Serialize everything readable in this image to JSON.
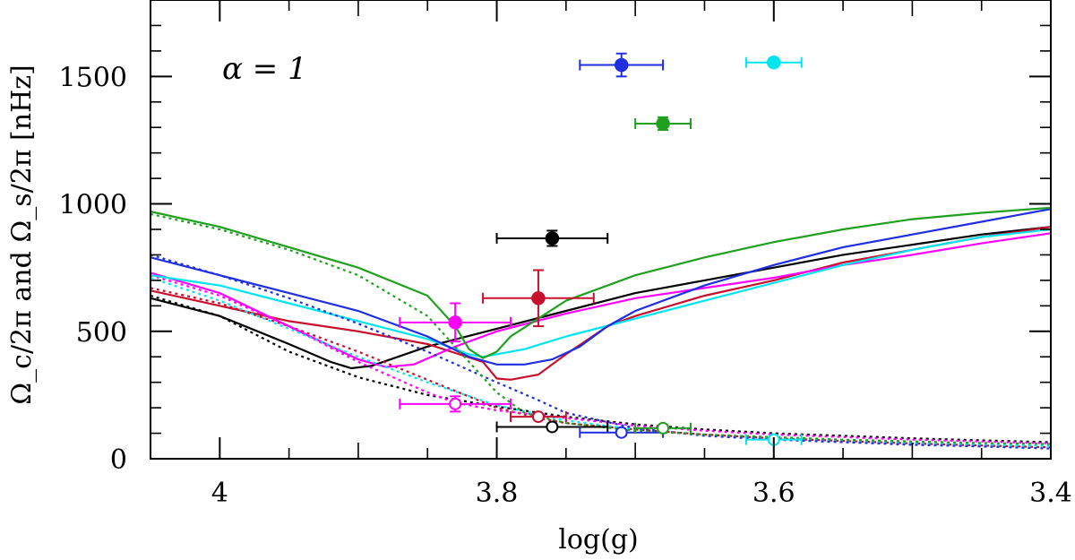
{
  "chart_data": {
    "type": "line",
    "title": "",
    "xlabel": "log(g)",
    "ylabel": "Ω_c/2π and Ω_s/2π [nHz]",
    "xlim": [
      4.05,
      3.4
    ],
    "ylim": [
      0,
      1800
    ],
    "x_ticks": [
      {
        "value": 4.0,
        "label": "4"
      },
      {
        "value": 3.8,
        "label": "3.8"
      },
      {
        "value": 3.6,
        "label": "3.6"
      },
      {
        "value": 3.4,
        "label": "3.4"
      }
    ],
    "y_ticks": [
      {
        "value": 0,
        "label": "0"
      },
      {
        "value": 500,
        "label": "500"
      },
      {
        "value": 1000,
        "label": "1000"
      },
      {
        "value": 1500,
        "label": "1500"
      }
    ],
    "annotation": "α = 1",
    "series": [
      {
        "name": "black-core",
        "color": "#000000",
        "style": "solid",
        "x": [
          4.05,
          4.0,
          3.95,
          3.92,
          3.905,
          3.89,
          3.85,
          3.8,
          3.75,
          3.7,
          3.65,
          3.6,
          3.55,
          3.5,
          3.45,
          3.4
        ],
        "y": [
          630,
          560,
          450,
          380,
          355,
          365,
          440,
          510,
          580,
          650,
          700,
          750,
          800,
          840,
          880,
          910
        ]
      },
      {
        "name": "black-surface",
        "color": "#000000",
        "style": "dotted",
        "x": [
          4.05,
          4.0,
          3.95,
          3.9,
          3.85,
          3.8,
          3.75,
          3.7,
          3.65,
          3.6,
          3.55,
          3.5,
          3.45,
          3.4
        ],
        "y": [
          640,
          560,
          420,
          320,
          250,
          205,
          165,
          135,
          115,
          100,
          90,
          80,
          72,
          65
        ]
      },
      {
        "name": "red-core",
        "color": "#c8102e",
        "style": "solid",
        "x": [
          4.05,
          4.0,
          3.95,
          3.9,
          3.85,
          3.81,
          3.8,
          3.79,
          3.77,
          3.75,
          3.72,
          3.7,
          3.65,
          3.6,
          3.55,
          3.5,
          3.45,
          3.4
        ],
        "y": [
          660,
          600,
          540,
          500,
          450,
          380,
          315,
          310,
          330,
          410,
          520,
          560,
          640,
          700,
          770,
          820,
          870,
          910
        ]
      },
      {
        "name": "red-surface",
        "color": "#c8102e",
        "style": "dotted",
        "x": [
          4.05,
          4.0,
          3.95,
          3.9,
          3.85,
          3.8,
          3.77,
          3.75,
          3.7,
          3.65,
          3.6,
          3.55,
          3.5,
          3.45,
          3.4
        ],
        "y": [
          670,
          610,
          520,
          420,
          310,
          200,
          160,
          140,
          115,
          95,
          80,
          70,
          60,
          52,
          45
        ]
      },
      {
        "name": "magenta-core",
        "color": "#ff00ff",
        "style": "solid",
        "x": [
          4.05,
          4.0,
          3.95,
          3.9,
          3.88,
          3.86,
          3.83,
          3.8,
          3.75,
          3.7,
          3.65,
          3.6,
          3.55,
          3.5,
          3.45,
          3.4
        ],
        "y": [
          730,
          650,
          520,
          390,
          360,
          370,
          440,
          500,
          570,
          630,
          670,
          710,
          760,
          800,
          845,
          885
        ]
      },
      {
        "name": "magenta-surface",
        "color": "#ff00ff",
        "style": "dotted",
        "x": [
          4.05,
          4.0,
          3.95,
          3.9,
          3.85,
          3.83,
          3.8,
          3.75,
          3.7,
          3.65,
          3.6,
          3.55,
          3.5,
          3.45,
          3.4
        ],
        "y": [
          720,
          640,
          520,
          380,
          260,
          220,
          190,
          160,
          130,
          110,
          95,
          85,
          75,
          68,
          60
        ]
      },
      {
        "name": "cyan-core",
        "color": "#00e5ee",
        "style": "solid",
        "x": [
          4.05,
          4.0,
          3.95,
          3.9,
          3.85,
          3.82,
          3.81,
          3.78,
          3.75,
          3.7,
          3.65,
          3.6,
          3.55,
          3.5,
          3.45,
          3.4
        ],
        "y": [
          720,
          680,
          610,
          540,
          470,
          410,
          400,
          430,
          480,
          550,
          620,
          690,
          760,
          820,
          870,
          900
        ]
      },
      {
        "name": "cyan-surface",
        "color": "#00e5ee",
        "style": "dotted",
        "x": [
          4.05,
          4.0,
          3.95,
          3.9,
          3.85,
          3.8,
          3.75,
          3.7,
          3.65,
          3.6,
          3.55,
          3.5,
          3.45,
          3.4
        ],
        "y": [
          710,
          620,
          510,
          400,
          300,
          210,
          150,
          115,
          95,
          80,
          70,
          62,
          55,
          50
        ]
      },
      {
        "name": "blue-core",
        "color": "#1f2fe0",
        "style": "solid",
        "x": [
          4.05,
          4.0,
          3.95,
          3.9,
          3.85,
          3.82,
          3.8,
          3.78,
          3.76,
          3.74,
          3.72,
          3.7,
          3.65,
          3.6,
          3.55,
          3.5,
          3.45,
          3.4
        ],
        "y": [
          790,
          720,
          650,
          580,
          480,
          400,
          370,
          370,
          390,
          440,
          520,
          580,
          680,
          760,
          830,
          880,
          930,
          980
        ]
      },
      {
        "name": "blue-surface",
        "color": "#1f2fe0",
        "style": "dotted",
        "x": [
          4.05,
          4.0,
          3.95,
          3.9,
          3.85,
          3.8,
          3.77,
          3.75,
          3.7,
          3.65,
          3.6,
          3.55,
          3.5,
          3.45,
          3.4
        ],
        "y": [
          800,
          720,
          630,
          530,
          420,
          300,
          230,
          180,
          120,
          90,
          75,
          65,
          55,
          48,
          40
        ]
      },
      {
        "name": "green-core",
        "color": "#1fa01f",
        "style": "solid",
        "x": [
          4.05,
          4.0,
          3.95,
          3.9,
          3.85,
          3.83,
          3.82,
          3.81,
          3.8,
          3.79,
          3.77,
          3.75,
          3.7,
          3.65,
          3.6,
          3.55,
          3.5,
          3.45,
          3.4
        ],
        "y": [
          970,
          910,
          830,
          750,
          640,
          520,
          430,
          395,
          420,
          480,
          550,
          620,
          720,
          790,
          850,
          900,
          940,
          965,
          985
        ]
      },
      {
        "name": "green-surface",
        "color": "#1fa01f",
        "style": "dotted",
        "x": [
          4.05,
          4.0,
          3.95,
          3.9,
          3.85,
          3.82,
          3.8,
          3.78,
          3.75,
          3.7,
          3.65,
          3.6,
          3.55,
          3.5,
          3.45,
          3.4
        ],
        "y": [
          960,
          900,
          820,
          720,
          560,
          380,
          260,
          180,
          140,
          110,
          95,
          85,
          75,
          68,
          62,
          58
        ]
      }
    ],
    "error_points": [
      {
        "name": "black-filled",
        "color": "#000000",
        "filled": true,
        "x": 3.76,
        "y": 865,
        "xerr": 0.04,
        "yerr": 30
      },
      {
        "name": "red-filled",
        "color": "#c8102e",
        "filled": true,
        "x": 3.77,
        "y": 630,
        "xerr": 0.04,
        "yerr": 110
      },
      {
        "name": "magenta-filled",
        "color": "#ff00ff",
        "filled": true,
        "x": 3.83,
        "y": 535,
        "xerr": 0.04,
        "yerr": 75
      },
      {
        "name": "blue-filled",
        "color": "#1f2fe0",
        "filled": true,
        "x": 3.71,
        "y": 1545,
        "xerr": 0.03,
        "yerr": 45
      },
      {
        "name": "green-filled",
        "color": "#1fa01f",
        "filled": true,
        "x": 3.68,
        "y": 1315,
        "xerr": 0.02,
        "yerr": 25
      },
      {
        "name": "cyan-filled",
        "color": "#00e5ee",
        "filled": true,
        "x": 3.6,
        "y": 1555,
        "xerr": 0.02,
        "yerr": 15
      },
      {
        "name": "black-open",
        "color": "#000000",
        "filled": false,
        "x": 3.76,
        "y": 125,
        "xerr": 0.04,
        "yerr": 10
      },
      {
        "name": "red-open",
        "color": "#c8102e",
        "filled": false,
        "x": 3.77,
        "y": 165,
        "xerr": 0.02,
        "yerr": 10
      },
      {
        "name": "magenta-open",
        "color": "#ff00ff",
        "filled": false,
        "x": 3.83,
        "y": 215,
        "xerr": 0.04,
        "yerr": 30
      },
      {
        "name": "blue-open",
        "color": "#1f2fe0",
        "filled": false,
        "x": 3.71,
        "y": 103,
        "xerr": 0.03,
        "yerr": 10
      },
      {
        "name": "green-open",
        "color": "#1fa01f",
        "filled": false,
        "x": 3.68,
        "y": 120,
        "xerr": 0.02,
        "yerr": 10
      },
      {
        "name": "cyan-open",
        "color": "#00e5ee",
        "filled": false,
        "x": 3.6,
        "y": 75,
        "xerr": 0.02,
        "yerr": 10
      }
    ]
  }
}
